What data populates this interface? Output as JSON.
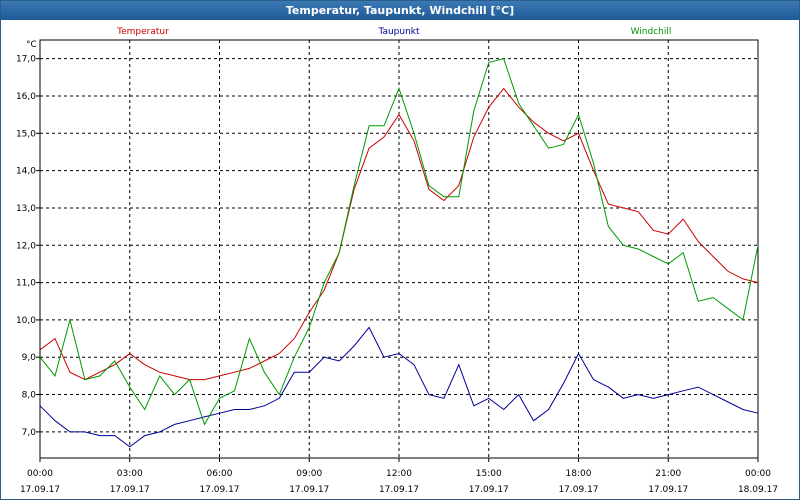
{
  "window": {
    "title": "Temperatur, Taupunkt, Windchill [°C]"
  },
  "chart_data": {
    "type": "line",
    "title": "Temperatur, Taupunkt, Windchill [°C]",
    "ylabel": "°C",
    "xlabel": "",
    "ylim": [
      6.3,
      17.5
    ],
    "xlim": [
      0,
      24
    ],
    "grid": true,
    "legend_placement": "top",
    "y_ticks": [
      "7,0",
      "8,0",
      "9,0",
      "10,0",
      "11,0",
      "12,0",
      "13,0",
      "14,0",
      "15,0",
      "16,0",
      "17,0"
    ],
    "y_tick_values": [
      7,
      8,
      9,
      10,
      11,
      12,
      13,
      14,
      15,
      16,
      17
    ],
    "x_ticks": [
      {
        "time": "00:00",
        "date": "17.09.17"
      },
      {
        "time": "03:00",
        "date": "17.09.17"
      },
      {
        "time": "06:00",
        "date": "17.09.17"
      },
      {
        "time": "09:00",
        "date": "17.09.17"
      },
      {
        "time": "12:00",
        "date": "17.09.17"
      },
      {
        "time": "15:00",
        "date": "17.09.17"
      },
      {
        "time": "18:00",
        "date": "17.09.17"
      },
      {
        "time": "21:00",
        "date": "17.09.17"
      },
      {
        "time": "00:00",
        "date": "18.09.17"
      }
    ],
    "x_tick_values": [
      0,
      3,
      6,
      9,
      12,
      15,
      18,
      21,
      24
    ],
    "series": [
      {
        "name": "Temperatur",
        "color": "#cc0000",
        "x": [
          0,
          0.5,
          1,
          1.5,
          2,
          2.5,
          3,
          3.5,
          4,
          4.5,
          5,
          5.5,
          6,
          6.5,
          7,
          7.5,
          8,
          8.5,
          9,
          9.5,
          10,
          10.5,
          11,
          11.5,
          12,
          12.5,
          13,
          13.5,
          14,
          14.5,
          15,
          15.5,
          16,
          16.5,
          17,
          17.5,
          18,
          18.5,
          19,
          19.5,
          20,
          20.5,
          21,
          21.5,
          22,
          22.5,
          23,
          23.5,
          24
        ],
        "values": [
          9.2,
          9.5,
          8.6,
          8.4,
          8.6,
          8.8,
          9.1,
          8.8,
          8.6,
          8.5,
          8.4,
          8.4,
          8.5,
          8.6,
          8.7,
          8.9,
          9.1,
          9.5,
          10.2,
          10.8,
          11.8,
          13.5,
          14.6,
          14.9,
          15.5,
          14.8,
          13.5,
          13.2,
          13.6,
          14.9,
          15.7,
          16.2,
          15.7,
          15.3,
          15.0,
          14.8,
          15.0,
          14.0,
          13.1,
          13.0,
          12.9,
          12.4,
          12.3,
          12.7,
          12.1,
          11.7,
          11.3,
          11.1,
          11.0
        ]
      },
      {
        "name": "Taupunkt",
        "color": "#000099",
        "x": [
          0,
          0.5,
          1,
          1.5,
          2,
          2.5,
          3,
          3.5,
          4,
          4.5,
          5,
          5.5,
          6,
          6.5,
          7,
          7.5,
          8,
          8.5,
          9,
          9.5,
          10,
          10.5,
          11,
          11.5,
          12,
          12.5,
          13,
          13.5,
          14,
          14.5,
          15,
          15.5,
          16,
          16.5,
          17,
          17.5,
          18,
          18.5,
          19,
          19.5,
          20,
          20.5,
          21,
          21.5,
          22,
          22.5,
          23,
          23.5,
          24
        ],
        "values": [
          7.7,
          7.3,
          7.0,
          7.0,
          6.9,
          6.9,
          6.6,
          6.9,
          7.0,
          7.2,
          7.3,
          7.4,
          7.5,
          7.6,
          7.6,
          7.7,
          7.9,
          8.6,
          8.6,
          9.0,
          8.9,
          9.3,
          9.8,
          9.0,
          9.1,
          8.8,
          8.0,
          7.9,
          8.8,
          7.7,
          7.9,
          7.6,
          8.0,
          7.3,
          7.6,
          8.3,
          9.1,
          8.4,
          8.2,
          7.9,
          8.0,
          7.9,
          8.0,
          8.1,
          8.2,
          8.0,
          7.8,
          7.6,
          7.5
        ]
      },
      {
        "name": "Windchill",
        "color": "#009900",
        "x": [
          0,
          0.5,
          1,
          1.5,
          2,
          2.5,
          3,
          3.5,
          4,
          4.5,
          5,
          5.5,
          6,
          6.5,
          7,
          7.5,
          8,
          8.5,
          9,
          9.5,
          10,
          10.5,
          11,
          11.5,
          12,
          12.5,
          13,
          13.5,
          14,
          14.5,
          15,
          15.5,
          16,
          16.5,
          17,
          17.5,
          18,
          18.5,
          19,
          19.5,
          20,
          20.5,
          21,
          21.5,
          22,
          22.5,
          23,
          23.5,
          24
        ],
        "values": [
          9.0,
          8.5,
          10.0,
          8.4,
          8.5,
          8.9,
          8.2,
          7.6,
          8.5,
          8.0,
          8.4,
          7.2,
          7.9,
          8.1,
          9.5,
          8.6,
          8.0,
          9.0,
          9.8,
          11.0,
          11.8,
          13.6,
          15.2,
          15.2,
          16.2,
          15.0,
          13.6,
          13.3,
          13.3,
          15.6,
          16.9,
          17.0,
          15.8,
          15.2,
          14.6,
          14.7,
          15.5,
          14.2,
          12.5,
          12.0,
          11.9,
          11.7,
          11.5,
          11.8,
          10.5,
          10.6,
          10.3,
          10.0,
          12.0
        ]
      }
    ]
  }
}
